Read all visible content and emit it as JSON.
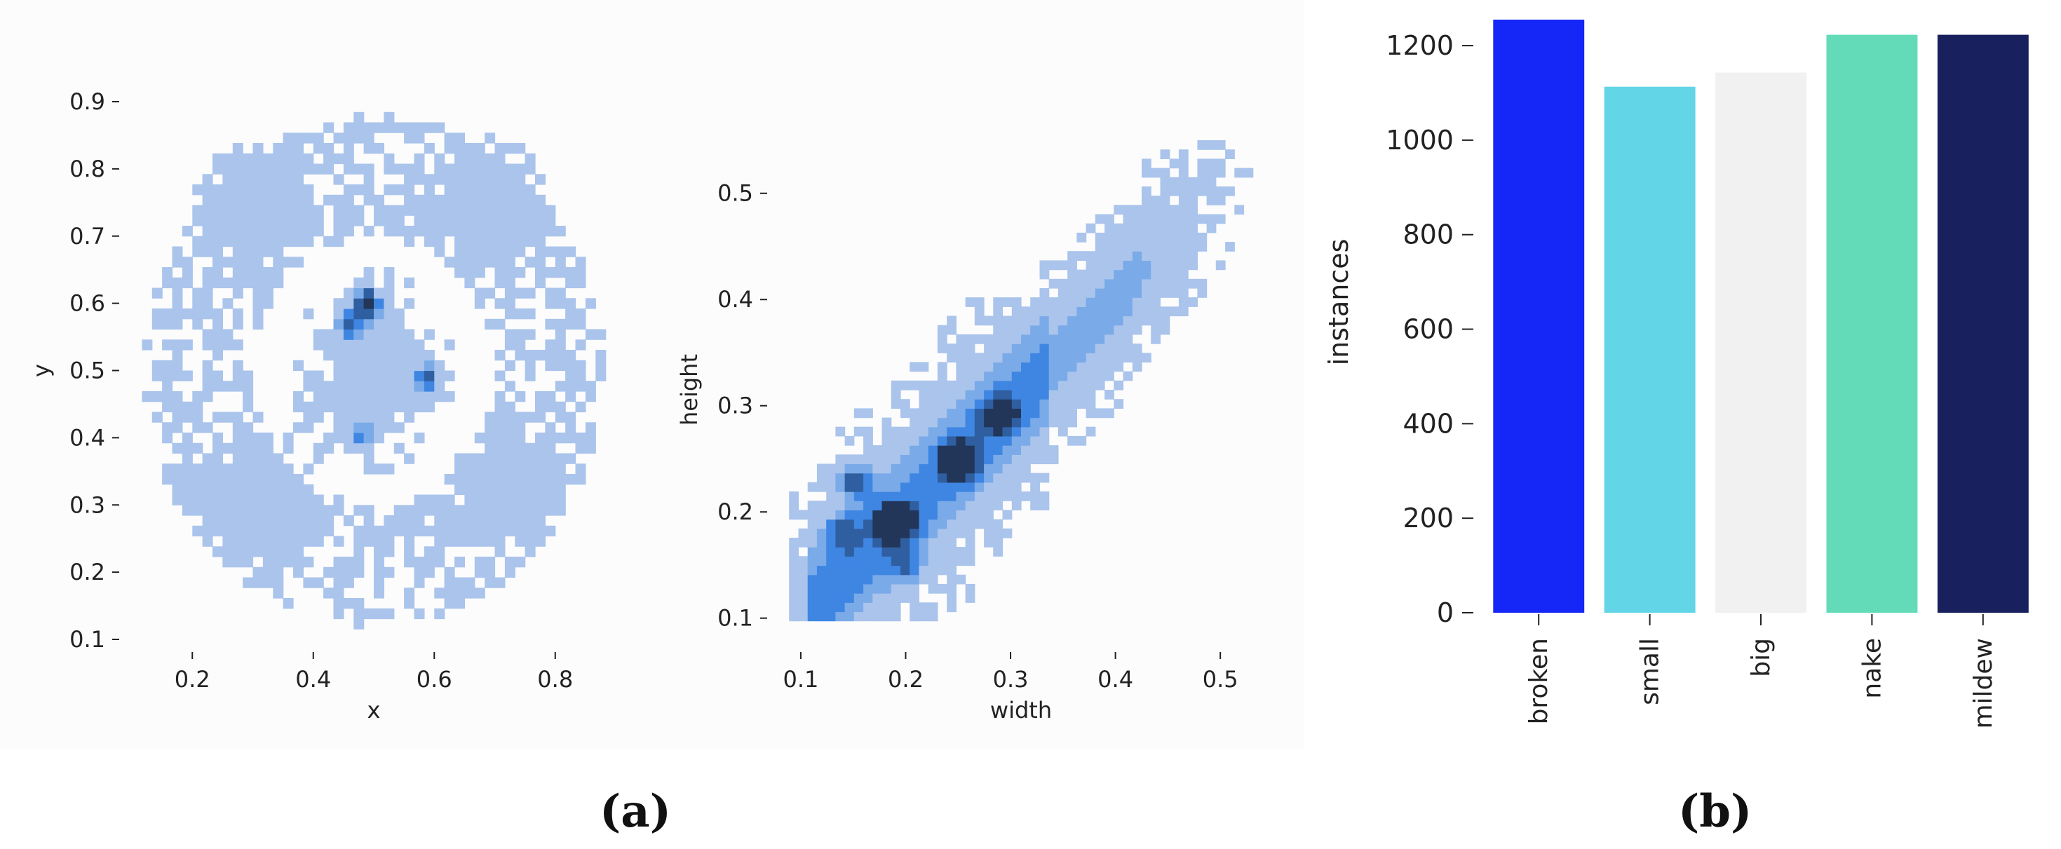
{
  "panel_a_label": "(a)",
  "panel_b_label": "(b)",
  "chart_data": [
    {
      "type": "heatmap",
      "panel": "(a)",
      "xlabel": "x",
      "ylabel": "y",
      "xlim": [
        0.1,
        0.9
      ],
      "ylim": [
        0.1,
        0.9
      ],
      "xticks": [
        "0.2",
        "0.4",
        "0.6",
        "0.8"
      ],
      "yticks": [
        "0.1",
        "0.2",
        "0.3",
        "0.4",
        "0.5",
        "0.6",
        "0.7",
        "0.8",
        "0.9"
      ],
      "grid": false,
      "colormap": [
        "#aac4ec",
        "#7aaae8",
        "#3f86e3",
        "#2f5fa0",
        "#22365a"
      ],
      "clusters": [
        {
          "cx": 0.3,
          "cy": 0.75,
          "sx": 0.06,
          "sy": 0.06,
          "w": 0.55
        },
        {
          "cx": 0.7,
          "cy": 0.75,
          "sx": 0.06,
          "sy": 0.06,
          "w": 0.55
        },
        {
          "cx": 0.3,
          "cy": 0.3,
          "sx": 0.07,
          "sy": 0.06,
          "w": 0.55
        },
        {
          "cx": 0.72,
          "cy": 0.32,
          "sx": 0.06,
          "sy": 0.05,
          "w": 0.55
        },
        {
          "cx": 0.5,
          "cy": 0.5,
          "sx": 0.07,
          "sy": 0.08,
          "w": 0.9
        },
        {
          "cx": 0.49,
          "cy": 0.6,
          "sx": 0.015,
          "sy": 0.015,
          "w": 2.2
        },
        {
          "cx": 0.59,
          "cy": 0.49,
          "sx": 0.015,
          "sy": 0.015,
          "w": 1.4
        },
        {
          "cx": 0.46,
          "cy": 0.57,
          "sx": 0.015,
          "sy": 0.015,
          "w": 1.2
        },
        {
          "cx": 0.48,
          "cy": 0.4,
          "sx": 0.015,
          "sy": 0.015,
          "w": 1.1
        }
      ]
    },
    {
      "type": "heatmap",
      "panel": "(a)",
      "xlabel": "width",
      "ylabel": "height",
      "xlim": [
        0.08,
        0.54
      ],
      "ylim": [
        0.08,
        0.55
      ],
      "xticks": [
        "0.1",
        "0.2",
        "0.3",
        "0.4",
        "0.5"
      ],
      "yticks": [
        "0.1",
        "0.2",
        "0.3",
        "0.4",
        "0.5"
      ],
      "grid": false,
      "colormap": [
        "#aac4ec",
        "#7aaae8",
        "#3f86e3",
        "#2f5fa0",
        "#22365a"
      ],
      "trend": {
        "slope": 1.0,
        "intercept": 0.0,
        "spread": 0.03
      },
      "hotspots": [
        {
          "x": 0.19,
          "y": 0.19,
          "w": 2.6
        },
        {
          "x": 0.25,
          "y": 0.25,
          "w": 2.2
        },
        {
          "x": 0.29,
          "y": 0.29,
          "w": 1.6
        },
        {
          "x": 0.15,
          "y": 0.23,
          "w": 1.2
        },
        {
          "x": 0.14,
          "y": 0.18,
          "w": 0.9
        },
        {
          "x": 0.2,
          "y": 0.15,
          "w": 0.8
        }
      ]
    },
    {
      "type": "bar",
      "panel": "(b)",
      "categories": [
        "broken",
        "small",
        "big",
        "nake",
        "mildew"
      ],
      "values": [
        1255,
        1113,
        1143,
        1223,
        1223
      ],
      "colors": [
        "#1427f7",
        "#62d5e6",
        "#f1f1f1",
        "#64dbb8",
        "#18205e"
      ],
      "xlabel": "",
      "ylabel": "instances",
      "ylim": [
        0,
        1255
      ],
      "yticks": [
        "0",
        "200",
        "400",
        "600",
        "800",
        "1000",
        "1200"
      ],
      "grid": false
    }
  ]
}
